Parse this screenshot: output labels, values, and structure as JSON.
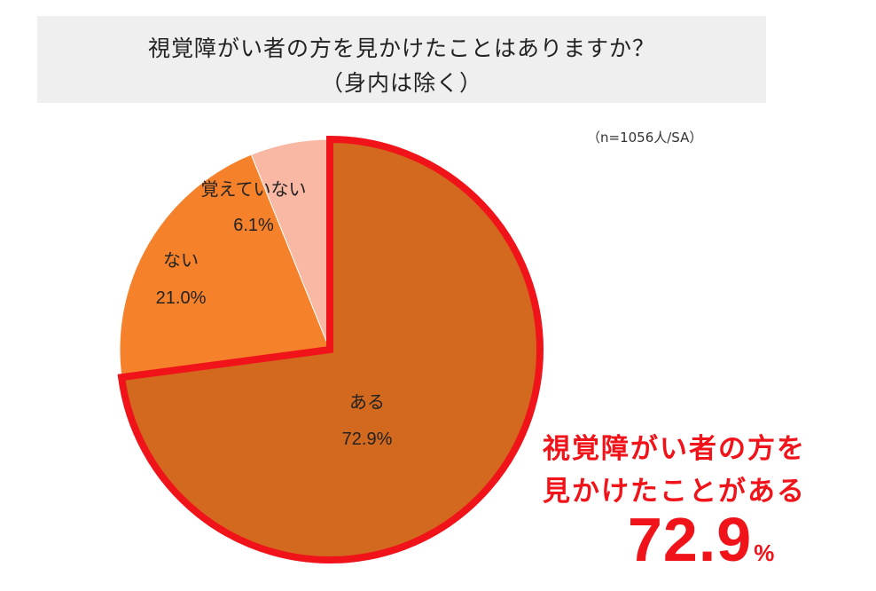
{
  "title": {
    "line1": "視覚障がい者の方を見かけたことはありますか？",
    "line2": "（身内は除く）"
  },
  "sample_note": "（n=1056人/SA）",
  "chart_data": {
    "type": "pie",
    "slices": [
      {
        "label": "ある",
        "value": 72.9,
        "display": "72.9%",
        "color": "#d2691e",
        "highlighted": true
      },
      {
        "label": "ない",
        "value": 21.0,
        "display": "21.0%",
        "color": "#f5822a",
        "highlighted": false
      },
      {
        "label": "覚えていない",
        "value": 6.1,
        "display": "6.1%",
        "color": "#f8b8a3",
        "highlighted": false
      }
    ],
    "start": "12 o'clock, clockwise",
    "highlight_color": "#f0141a"
  },
  "callout": {
    "line1": "視覚障がい者の方を",
    "line2": "見かけたことがある",
    "value": "72.9",
    "unit": "%"
  }
}
